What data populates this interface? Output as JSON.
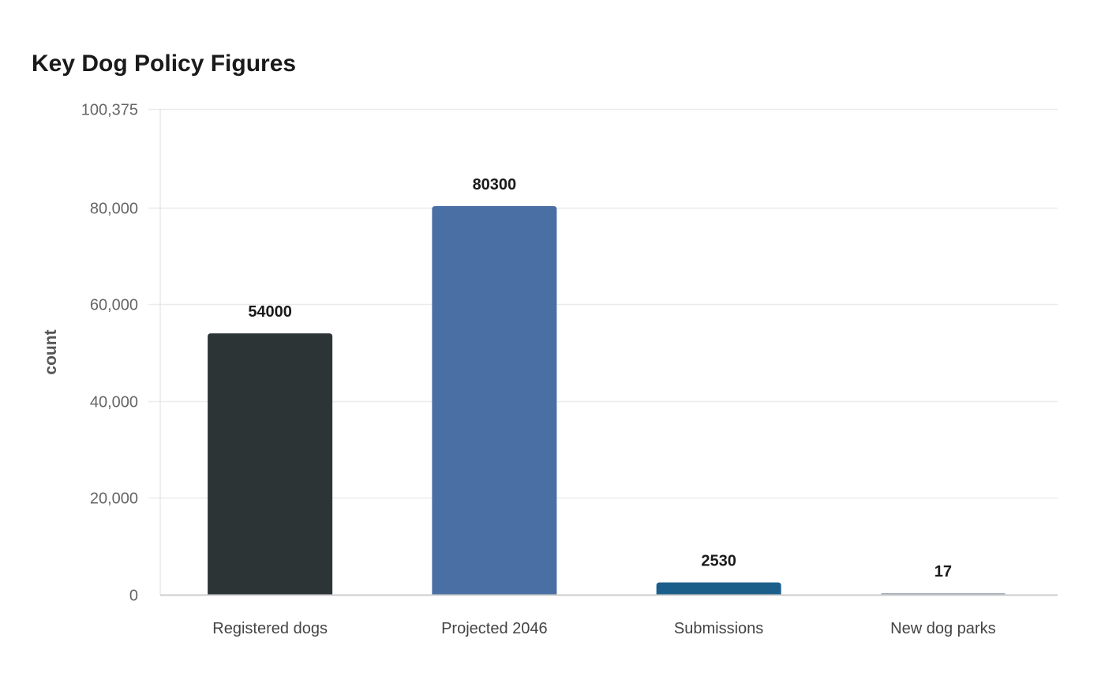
{
  "chart_data": {
    "type": "bar",
    "title": "Key Dog Policy Figures",
    "xlabel": "",
    "ylabel": "count",
    "categories": [
      "Registered dogs",
      "Projected 2046",
      "Submissions",
      "New dog parks"
    ],
    "values": [
      54000,
      80300,
      2530,
      17
    ],
    "data_labels": [
      "54000",
      "80300",
      "2530",
      "17"
    ],
    "colors": [
      "#2d3436",
      "#4a6fa5",
      "#1a5f8a",
      "#a4b0be"
    ],
    "ylim": [
      0,
      100375
    ],
    "yticks": [
      0,
      20000,
      40000,
      60000,
      80000,
      100375
    ],
    "ytick_labels": [
      "0",
      "20,000",
      "40,000",
      "60,000",
      "80,000",
      "100,375"
    ],
    "grid": true,
    "legend": "none"
  }
}
